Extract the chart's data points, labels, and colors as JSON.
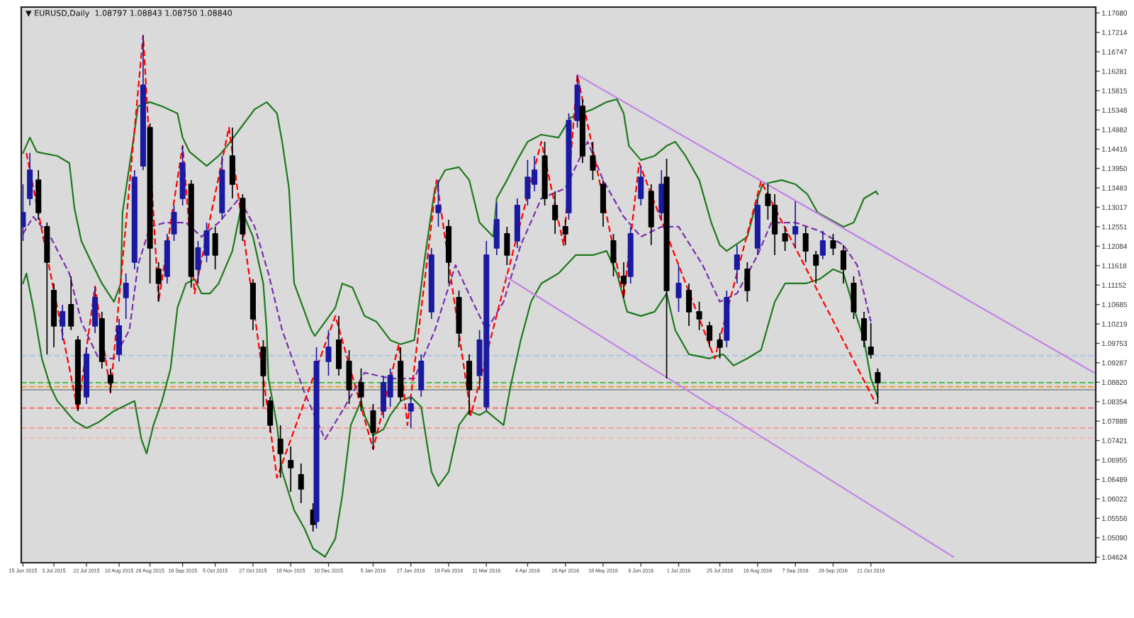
{
  "chart_data": {
    "type": "candlestick",
    "title": "▼ EURUSD,Daily  1.08797 1.08843 1.08750 1.08840",
    "x": [
      "2015-06-15",
      "2015-06-19",
      "2015-06-24",
      "2015-06-29",
      "2015-07-03",
      "2015-07-08",
      "2015-07-13",
      "2015-07-17",
      "2015-07-22",
      "2015-07-27",
      "2015-07-31",
      "2015-08-05",
      "2015-08-10",
      "2015-08-14",
      "2015-08-19",
      "2015-08-24",
      "2015-08-28",
      "2015-09-02",
      "2015-09-07",
      "2015-09-11",
      "2015-09-16",
      "2015-09-21",
      "2015-09-25",
      "2015-09-30",
      "2015-10-05",
      "2015-10-09",
      "2015-10-15",
      "2015-10-21",
      "2015-10-27",
      "2015-11-02",
      "2015-11-06",
      "2015-11-12",
      "2015-11-18",
      "2015-11-24",
      "2015-12-01",
      "2015-12-03",
      "2015-12-10",
      "2015-12-16",
      "2015-12-22",
      "2015-12-29",
      "2016-01-05",
      "2016-01-11",
      "2016-01-15",
      "2016-01-21",
      "2016-01-27",
      "2016-02-02",
      "2016-02-08",
      "2016-02-12",
      "2016-02-18",
      "2016-02-24",
      "2016-03-01",
      "2016-03-07",
      "2016-03-11",
      "2016-03-17",
      "2016-03-23",
      "2016-03-29",
      "2016-04-04",
      "2016-04-08",
      "2016-04-14",
      "2016-04-20",
      "2016-04-26",
      "2016-04-28",
      "2016-05-03",
      "2016-05-06",
      "2016-05-12",
      "2016-05-18",
      "2016-05-24",
      "2016-05-30",
      "2016-06-03",
      "2016-06-09",
      "2016-06-15",
      "2016-06-21",
      "2016-06-24",
      "2016-07-01",
      "2016-07-07",
      "2016-07-13",
      "2016-07-19",
      "2016-07-25",
      "2016-07-29",
      "2016-08-04",
      "2016-08-10",
      "2016-08-16",
      "2016-08-22",
      "2016-08-26",
      "2016-09-01",
      "2016-09-07",
      "2016-09-13",
      "2016-09-19",
      "2016-09-23",
      "2016-09-29",
      "2016-10-05",
      "2016-10-11",
      "2016-10-17",
      "2016-10-21",
      "2016-10-25"
    ],
    "ohlc": [
      [
        1.1255,
        1.1357,
        1.1221,
        1.1289
      ],
      [
        1.1323,
        1.1432,
        1.1306,
        1.1391
      ],
      [
        1.1367,
        1.1391,
        1.1272,
        1.1289
      ],
      [
        1.1255,
        1.1265,
        1.0949,
        1.117
      ],
      [
        1.1102,
        1.1119,
        1.0966,
        1.1017
      ],
      [
        1.1017,
        1.1068,
        1.0983,
        1.1051
      ],
      [
        1.1068,
        1.1136,
        1.1007,
        1.1017
      ],
      [
        1.0983,
        1.0993,
        1.0813,
        1.083
      ],
      [
        1.0847,
        1.0966,
        1.083,
        1.0949
      ],
      [
        1.1017,
        1.1112,
        1.1,
        1.1085
      ],
      [
        1.1034,
        1.1051,
        1.0915,
        1.0932
      ],
      [
        1.0898,
        1.0915,
        1.0857,
        1.0881
      ],
      [
        1.0949,
        1.1034,
        1.0932,
        1.1017
      ],
      [
        1.1085,
        1.1143,
        1.1034,
        1.1119
      ],
      [
        1.117,
        1.1391,
        1.1153,
        1.1374
      ],
      [
        1.1401,
        1.1714,
        1.1391,
        1.1595
      ],
      [
        1.1493,
        1.1503,
        1.1119,
        1.1204
      ],
      [
        1.1153,
        1.117,
        1.1075,
        1.1119
      ],
      [
        1.1136,
        1.1238,
        1.1119,
        1.1221
      ],
      [
        1.1238,
        1.1306,
        1.1221,
        1.1289
      ],
      [
        1.1323,
        1.1449,
        1.1306,
        1.1408
      ],
      [
        1.1357,
        1.1367,
        1.1109,
        1.1136
      ],
      [
        1.1153,
        1.1221,
        1.1119,
        1.1204
      ],
      [
        1.1187,
        1.1265,
        1.117,
        1.1245
      ],
      [
        1.1238,
        1.1255,
        1.1153,
        1.1187
      ],
      [
        1.1289,
        1.1425,
        1.1272,
        1.1391
      ],
      [
        1.1425,
        1.1493,
        1.1323,
        1.1357
      ],
      [
        1.1323,
        1.1333,
        1.1221,
        1.1238
      ],
      [
        1.1119,
        1.1129,
        1.1007,
        1.1034
      ],
      [
        1.0966,
        1.0983,
        1.0823,
        1.0898
      ],
      [
        1.0837,
        1.0847,
        1.0762,
        1.0779
      ],
      [
        1.0745,
        1.0779,
        1.0653,
        1.0711
      ],
      [
        1.0694,
        1.0728,
        1.0619,
        1.0677
      ],
      [
        1.066,
        1.0687,
        1.0592,
        1.0626
      ],
      [
        1.0575,
        1.0592,
        1.0524,
        1.0541
      ],
      [
        1.0548,
        1.0966,
        1.0531,
        1.0932
      ],
      [
        1.0932,
        1.1007,
        1.0898,
        1.0966
      ],
      [
        1.0983,
        1.1041,
        1.0898,
        1.0915
      ],
      [
        1.0932,
        1.0959,
        1.083,
        1.0864
      ],
      [
        1.0881,
        1.0915,
        1.0813,
        1.0847
      ],
      [
        1.0813,
        1.083,
        1.0721,
        1.0762
      ],
      [
        1.0813,
        1.0898,
        1.0796,
        1.0881
      ],
      [
        1.0847,
        1.0915,
        1.0823,
        1.0898
      ],
      [
        1.0932,
        1.0966,
        1.0837,
        1.0847
      ],
      [
        1.0813,
        1.0847,
        1.0772,
        1.083
      ],
      [
        1.0864,
        1.0949,
        1.0847,
        1.0932
      ],
      [
        1.1051,
        1.1204,
        1.1034,
        1.1187
      ],
      [
        1.1289,
        1.1367,
        1.1255,
        1.1306
      ],
      [
        1.1255,
        1.1272,
        1.1119,
        1.117
      ],
      [
        1.1085,
        1.1102,
        1.0966,
        1.1
      ],
      [
        1.0932,
        1.0949,
        1.0803,
        1.0864
      ],
      [
        1.0898,
        1.1007,
        1.0864,
        1.0983
      ],
      [
        1.0823,
        1.1221,
        1.0813,
        1.1187
      ],
      [
        1.1204,
        1.1313,
        1.1187,
        1.1272
      ],
      [
        1.1238,
        1.1255,
        1.1163,
        1.1187
      ],
      [
        1.1221,
        1.1323,
        1.1204,
        1.1306
      ],
      [
        1.1323,
        1.1415,
        1.1306,
        1.1374
      ],
      [
        1.1357,
        1.1425,
        1.134,
        1.1391
      ],
      [
        1.1425,
        1.1459,
        1.1306,
        1.1323
      ],
      [
        1.1306,
        1.134,
        1.1238,
        1.1272
      ],
      [
        1.1255,
        1.1272,
        1.1211,
        1.1238
      ],
      [
        1.1289,
        1.1527,
        1.1272,
        1.151
      ],
      [
        1.151,
        1.1619,
        1.1493,
        1.1595
      ],
      [
        1.1544,
        1.1561,
        1.1408,
        1.1425
      ],
      [
        1.1425,
        1.1459,
        1.1367,
        1.1391
      ],
      [
        1.1357,
        1.1367,
        1.1255,
        1.1289
      ],
      [
        1.1221,
        1.1238,
        1.1136,
        1.117
      ],
      [
        1.1136,
        1.117,
        1.1085,
        1.1119
      ],
      [
        1.1136,
        1.1255,
        1.1119,
        1.1238
      ],
      [
        1.1323,
        1.1401,
        1.1306,
        1.1374
      ],
      [
        1.134,
        1.1357,
        1.1211,
        1.1255
      ],
      [
        1.1289,
        1.1391,
        1.1272,
        1.1357
      ],
      [
        1.1374,
        1.1418,
        1.0891,
        1.1102
      ],
      [
        1.1085,
        1.1163,
        1.1051,
        1.1119
      ],
      [
        1.1102,
        1.1119,
        1.1017,
        1.1051
      ],
      [
        1.1051,
        1.1075,
        1.1007,
        1.1034
      ],
      [
        1.1017,
        1.1027,
        1.0966,
        1.0983
      ],
      [
        1.0983,
        1.1,
        1.0939,
        1.0966
      ],
      [
        1.0983,
        1.1102,
        1.0966,
        1.1085
      ],
      [
        1.1153,
        1.1211,
        1.1119,
        1.1187
      ],
      [
        1.1153,
        1.117,
        1.1075,
        1.1102
      ],
      [
        1.1204,
        1.1323,
        1.1187,
        1.1306
      ],
      [
        1.1333,
        1.1357,
        1.1272,
        1.1306
      ],
      [
        1.1306,
        1.1333,
        1.1187,
        1.1238
      ],
      [
        1.1238,
        1.1255,
        1.1197,
        1.1221
      ],
      [
        1.1238,
        1.1316,
        1.1204,
        1.1255
      ],
      [
        1.1238,
        1.1255,
        1.117,
        1.1197
      ],
      [
        1.1187,
        1.1197,
        1.1119,
        1.1163
      ],
      [
        1.1187,
        1.1245,
        1.1177,
        1.1221
      ],
      [
        1.1221,
        1.1238,
        1.1187,
        1.1204
      ],
      [
        1.1197,
        1.1211,
        1.1119,
        1.1153
      ],
      [
        1.1119,
        1.1136,
        1.1034,
        1.1051
      ],
      [
        1.1034,
        1.1051,
        1.0966,
        1.0983
      ],
      [
        1.0966,
        1.1024,
        1.0939,
        1.0949
      ],
      [
        1.0905,
        1.0915,
        1.083,
        1.0881
      ]
    ],
    "colors": [
      "#1a1aa0",
      "#1a1aa0",
      "#000000",
      "#000000",
      "#000000",
      "#1a1aa0",
      "#000000",
      "#000000",
      "#1a1aa0",
      "#1a1aa0",
      "#000000",
      "#000000",
      "#1a1aa0",
      "#1a1aa0",
      "#1a1aa0",
      "#1a1aa0",
      "#000000",
      "#000000",
      "#1a1aa0",
      "#1a1aa0",
      "#1a1aa0",
      "#000000",
      "#1a1aa0",
      "#1a1aa0",
      "#000000",
      "#1a1aa0",
      "#000000",
      "#000000",
      "#000000",
      "#000000",
      "#000000",
      "#000000",
      "#000000",
      "#000000",
      "#000000",
      "#1a1aa0",
      "#1a1aa0",
      "#000000",
      "#000000",
      "#000000",
      "#000000",
      "#1a1aa0",
      "#1a1aa0",
      "#000000",
      "#1a1aa0",
      "#1a1aa0",
      "#1a1aa0",
      "#1a1aa0",
      "#000000",
      "#000000",
      "#000000",
      "#1a1aa0",
      "#1a1aa0",
      "#1a1aa0",
      "#000000",
      "#1a1aa0",
      "#1a1aa0",
      "#1a1aa0",
      "#000000",
      "#000000",
      "#000000",
      "#1a1aa0",
      "#1a1aa0",
      "#000000",
      "#000000",
      "#000000",
      "#000000",
      "#000000",
      "#1a1aa0",
      "#1a1aa0",
      "#000000",
      "#1a1aa0",
      "#000000",
      "#1a1aa0",
      "#000000",
      "#000000",
      "#000000",
      "#000000",
      "#1a1aa0",
      "#1a1aa0",
      "#000000",
      "#1a1aa0",
      "#000000",
      "#000000",
      "#000000",
      "#1a1aa0",
      "#000000",
      "#000000",
      "#1a1aa0",
      "#000000",
      "#000000",
      "#000000",
      "#000000",
      "#000000",
      "#000000"
    ],
    "series": [
      {
        "type": "line",
        "color": "#1e7a1e",
        "line_style": "solid",
        "x": [
          "2015-06-15",
          "2015-06-19",
          "2015-06-23",
          "2015-06-26",
          "2015-07-05",
          "2015-07-12",
          "2015-07-15",
          "2015-07-19",
          "2015-07-24",
          "2015-07-31",
          "2015-08-07",
          "2015-08-11",
          "2015-08-12",
          "2015-08-19",
          "2015-08-21",
          "2015-08-28",
          "2015-09-04",
          "2015-09-13",
          "2015-09-16",
          "2015-09-20",
          "2015-09-30",
          "2015-10-07",
          "2015-10-12",
          "2015-10-20",
          "2015-10-28",
          "2015-11-04",
          "2015-11-10",
          "2015-11-13",
          "2015-11-17",
          "2015-11-20",
          "2015-11-30",
          "2015-12-02",
          "2015-12-14",
          "2015-12-18",
          "2015-12-24",
          "2015-12-31",
          "2016-01-07",
          "2016-01-15",
          "2016-01-21",
          "2016-01-29",
          "2016-02-04",
          "2016-02-10",
          "2016-02-16",
          "2016-02-24",
          "2016-03-01",
          "2016-03-07",
          "2016-03-15",
          "2016-03-17",
          "2016-03-23",
          "2016-03-29",
          "2016-04-04",
          "2016-04-12",
          "2016-04-22",
          "2016-04-29",
          "2016-05-12",
          "2016-05-20",
          "2016-05-26",
          "2016-05-30",
          "2016-06-02",
          "2016-06-09",
          "2016-06-17",
          "2016-06-24",
          "2016-06-29",
          "2016-07-05",
          "2016-07-13",
          "2016-07-20",
          "2016-07-25",
          "2016-07-29",
          "2016-08-10",
          "2016-08-16",
          "2016-08-19",
          "2016-08-30",
          "2016-09-07",
          "2016-09-14",
          "2016-09-20",
          "2016-10-05",
          "2016-10-11",
          "2016-10-17",
          "2016-10-24",
          "2016-10-25"
        ],
        "values": [
          1.1432,
          1.1469,
          1.1435,
          1.1432,
          1.1425,
          1.1408,
          1.1299,
          1.1221,
          1.1177,
          1.1119,
          1.1075,
          1.1119,
          1.1289,
          1.1483,
          1.1544,
          1.1554,
          1.1544,
          1.1527,
          1.1469,
          1.1435,
          1.1401,
          1.1425,
          1.1449,
          1.1493,
          1.1537,
          1.1554,
          1.1527,
          1.1459,
          1.1347,
          1.1119,
          1.1007,
          1.0993,
          1.1061,
          1.1119,
          1.1109,
          1.1041,
          1.1027,
          1.0983,
          1.0973,
          1.0983,
          1.1177,
          1.1347,
          1.1391,
          1.1398,
          1.1367,
          1.1265,
          1.1231,
          1.1323,
          1.1367,
          1.1415,
          1.1459,
          1.1476,
          1.1469,
          1.1517,
          1.1537,
          1.1554,
          1.1561,
          1.1527,
          1.1449,
          1.1415,
          1.1425,
          1.1449,
          1.1459,
          1.1425,
          1.1367,
          1.1265,
          1.1211,
          1.1197,
          1.1231,
          1.1323,
          1.1357,
          1.1367,
          1.1357,
          1.1333,
          1.1289,
          1.1255,
          1.1265,
          1.1323,
          1.134,
          1.1333
        ]
      },
      {
        "type": "line",
        "color": "#1e7a1e",
        "line_style": "solid",
        "x": [
          "2015-06-15",
          "2015-06-17",
          "2015-06-21",
          "2015-06-26",
          "2015-07-01",
          "2015-07-05",
          "2015-07-15",
          "2015-07-22",
          "2015-07-29",
          "2015-08-07",
          "2015-08-12",
          "2015-08-19",
          "2015-08-23",
          "2015-08-26",
          "2015-08-30",
          "2015-09-04",
          "2015-09-09",
          "2015-09-13",
          "2015-09-18",
          "2015-09-23",
          "2015-09-27",
          "2015-10-02",
          "2015-10-07",
          "2015-10-15",
          "2015-10-20",
          "2015-10-27",
          "2015-11-02",
          "2015-11-04",
          "2015-11-05",
          "2015-11-10",
          "2015-11-13",
          "2015-11-20",
          "2015-11-26",
          "2015-12-01",
          "2015-12-08",
          "2015-12-14",
          "2015-12-18",
          "2015-12-23",
          "2015-12-29",
          "2015-12-31",
          "2016-01-05",
          "2016-01-11",
          "2016-01-15",
          "2016-01-21",
          "2016-01-27",
          "2016-02-02",
          "2016-02-08",
          "2016-02-12",
          "2016-02-18",
          "2016-02-24",
          "2016-03-01",
          "2016-03-07",
          "2016-03-11",
          "2016-03-21",
          "2016-03-25",
          "2016-03-31",
          "2016-04-06",
          "2016-04-12",
          "2016-04-22",
          "2016-05-02",
          "2016-05-12",
          "2016-05-20",
          "2016-05-26",
          "2016-06-01",
          "2016-06-09",
          "2016-06-17",
          "2016-06-24",
          "2016-06-29",
          "2016-07-07",
          "2016-07-19",
          "2016-07-27",
          "2016-08-02",
          "2016-08-10",
          "2016-08-18",
          "2016-08-26",
          "2016-09-01",
          "2016-09-13",
          "2016-09-21",
          "2016-09-29",
          "2016-10-05",
          "2016-10-11",
          "2016-10-17",
          "2016-10-21",
          "2016-10-25"
        ],
        "values": [
          1.1119,
          1.1143,
          1.1061,
          1.0939,
          1.0871,
          1.0837,
          1.0789,
          1.0772,
          1.0786,
          1.0813,
          1.0823,
          1.0837,
          1.0745,
          1.0711,
          1.0779,
          1.0837,
          1.0915,
          1.1061,
          1.1119,
          1.1129,
          1.1095,
          1.1095,
          1.1119,
          1.1197,
          1.1299,
          1.1231,
          1.1119,
          1.1007,
          1.0891,
          1.0779,
          1.0667,
          1.0575,
          1.0531,
          1.0483,
          1.0463,
          1.0507,
          1.0609,
          1.0779,
          1.0837,
          1.0803,
          1.0755,
          1.0769,
          1.0803,
          1.0837,
          1.0847,
          1.0823,
          1.0667,
          1.0633,
          1.0667,
          1.0779,
          1.0813,
          1.0803,
          1.0813,
          1.0779,
          1.0871,
          1.0983,
          1.1075,
          1.1119,
          1.1143,
          1.1187,
          1.1187,
          1.1197,
          1.1143,
          1.1051,
          1.1041,
          1.1051,
          1.1095,
          1.1007,
          1.0949,
          1.0939,
          1.0949,
          1.0922,
          1.0939,
          1.0959,
          1.1075,
          1.1119,
          1.1119,
          1.1129,
          1.1153,
          1.1143,
          1.1061,
          1.0983,
          1.0891,
          1.0847
        ]
      },
      {
        "type": "line",
        "color": "#7a2fb0",
        "line_style": "dashed",
        "x": [
          "2015-06-15",
          "2015-06-21",
          "2015-07-01",
          "2015-07-12",
          "2015-07-19",
          "2015-07-29",
          "2015-08-07",
          "2015-08-16",
          "2015-08-21",
          "2015-08-28",
          "2015-09-06",
          "2015-09-18",
          "2015-09-27",
          "2015-10-07",
          "2015-10-19",
          "2015-10-28",
          "2015-11-05",
          "2015-11-13",
          "2015-11-26",
          "2015-12-08",
          "2015-12-18",
          "2015-12-31",
          "2016-01-15",
          "2016-01-29",
          "2016-02-10",
          "2016-02-22",
          "2016-03-03",
          "2016-03-11",
          "2016-03-21",
          "2016-03-31",
          "2016-04-12",
          "2016-04-26",
          "2016-05-09",
          "2016-05-18",
          "2016-05-30",
          "2016-06-09",
          "2016-06-21",
          "2016-07-01",
          "2016-07-15",
          "2016-07-25",
          "2016-08-04",
          "2016-08-16",
          "2016-08-24",
          "2016-09-07",
          "2016-09-21",
          "2016-10-05",
          "2016-10-13",
          "2016-10-21"
        ],
        "values": [
          1.1238,
          1.1279,
          1.1231,
          1.1143,
          1.1027,
          1.0939,
          1.0939,
          1.1007,
          1.1163,
          1.1255,
          1.1265,
          1.1265,
          1.1231,
          1.1265,
          1.1323,
          1.1255,
          1.1143,
          1.1007,
          1.0857,
          1.0745,
          1.0813,
          1.0905,
          1.0891,
          1.0891,
          1.1007,
          1.1163,
          1.1075,
          1.1007,
          1.1075,
          1.1211,
          1.1323,
          1.1347,
          1.1459,
          1.1367,
          1.1279,
          1.1231,
          1.1255,
          1.1255,
          1.1163,
          1.1075,
          1.1095,
          1.1187,
          1.1265,
          1.1265,
          1.1245,
          1.1211,
          1.1163,
          1.1027
        ]
      },
      {
        "type": "line",
        "color": "#ff0000",
        "line_style": "dashed",
        "x": [
          "2015-06-17",
          "2015-07-17",
          "2015-07-27",
          "2015-08-05",
          "2015-08-24",
          "2015-09-02",
          "2015-09-16",
          "2015-09-23",
          "2015-10-13",
          "2015-11-10",
          "2015-12-14",
          "2016-01-05",
          "2016-01-20",
          "2016-01-25",
          "2016-02-11",
          "2016-03-02",
          "2016-04-12",
          "2016-04-25",
          "2016-05-03",
          "2016-05-30",
          "2016-06-08",
          "2016-07-22",
          "2016-08-18",
          "2016-10-24"
        ],
        "values": [
          1.1432,
          1.0813,
          1.1112,
          1.0857,
          1.1714,
          1.1075,
          1.1449,
          1.1095,
          1.1493,
          1.0653,
          1.1041,
          1.0721,
          1.0973,
          1.0779,
          1.1367,
          1.0803,
          1.1459,
          1.1211,
          1.1619,
          1.1085,
          1.1408,
          1.0939,
          1.1364,
          1.083
        ]
      },
      {
        "type": "line",
        "color": "#c383e6",
        "line_style": "solid",
        "x": [
          "2016-05-03",
          "2017-02-28"
        ],
        "values": [
          1.1619,
          1.0905
        ]
      },
      {
        "type": "line",
        "color": "#c383e6",
        "line_style": "solid",
        "x": [
          "2016-03-22",
          "2016-12-08"
        ],
        "values": [
          1.1136,
          1.0463
        ]
      }
    ],
    "ref_lines": [
      {
        "axis": "y",
        "value": 1.0946,
        "color": "#a9c3e0",
        "line_style": "dashed"
      },
      {
        "axis": "y",
        "value": 1.0881,
        "color": "#4cc24c",
        "line_style": "dashed"
      },
      {
        "axis": "y",
        "value": 1.0871,
        "color": "#f0a030",
        "line_style": "dashed"
      },
      {
        "axis": "y",
        "value": 1.0864,
        "color": "#9a9a9a",
        "line_style": "solid"
      },
      {
        "axis": "y",
        "value": 1.082,
        "color": "#f07070",
        "line_style": "dashed"
      },
      {
        "axis": "y",
        "value": 1.0772,
        "color": "#f4a0a0",
        "line_style": "dashed"
      },
      {
        "axis": "y",
        "value": 1.0748,
        "color": "#f0b4b4",
        "line_style": "dashed"
      }
    ],
    "xlim": [
      "2015-06-14",
      "2017-03-01"
    ],
    "xticks": [
      {
        "value": "2015-06-15",
        "label": "15 Jun 2015"
      },
      {
        "value": "2015-07-03",
        "label": "3 Jul 2015"
      },
      {
        "value": "2015-07-22",
        "label": "22 Jul 2015"
      },
      {
        "value": "2015-08-10",
        "label": "10 Aug 2015"
      },
      {
        "value": "2015-08-28",
        "label": "28 Aug 2015"
      },
      {
        "value": "2015-09-16",
        "label": "16 Sep 2015"
      },
      {
        "value": "2015-10-05",
        "label": "5 Oct 2015"
      },
      {
        "value": "2015-10-27",
        "label": "27 Oct 2015"
      },
      {
        "value": "2015-11-18",
        "label": "18 Nov 2015"
      },
      {
        "value": "2015-12-10",
        "label": "10 Dec 2015"
      },
      {
        "value": "2016-01-05",
        "label": "5 Jan 2016"
      },
      {
        "value": "2016-01-27",
        "label": "27 Jan 2016"
      },
      {
        "value": "2016-02-18",
        "label": "18 Feb 2016"
      },
      {
        "value": "2016-03-11",
        "label": "11 Mar 2016"
      },
      {
        "value": "2016-04-04",
        "label": "4 Apr 2016"
      },
      {
        "value": "2016-04-26",
        "label": "26 Apr 2016"
      },
      {
        "value": "2016-05-18",
        "label": "18 May 2016"
      },
      {
        "value": "2016-06-09",
        "label": "9 Jun 2016"
      },
      {
        "value": "2016-07-01",
        "label": "1 Jul 2016"
      },
      {
        "value": "2016-07-25",
        "label": "25 Jul 2016"
      },
      {
        "value": "2016-08-16",
        "label": "16 Aug 2016"
      },
      {
        "value": "2016-09-07",
        "label": "7 Sep 2016"
      },
      {
        "value": "2016-09-29",
        "label": "29 Sep 2016"
      },
      {
        "value": "2016-10-21",
        "label": "21 Oct 2016"
      }
    ],
    "ylim": [
      1.0449,
      1.1782
    ],
    "yticks": [
      {
        "value": 1.1768,
        "label": "1.17680"
      },
      {
        "value": 1.17214,
        "label": "1.17214"
      },
      {
        "value": 1.16747,
        "label": "1.16747"
      },
      {
        "value": 1.16281,
        "label": "1.16281"
      },
      {
        "value": 1.15815,
        "label": "1.15815"
      },
      {
        "value": 1.15348,
        "label": "1.15348"
      },
      {
        "value": 1.14882,
        "label": "1.14882"
      },
      {
        "value": 1.14416,
        "label": "1.14416"
      },
      {
        "value": 1.1395,
        "label": "1.13950"
      },
      {
        "value": 1.13483,
        "label": "1.13483"
      },
      {
        "value": 1.13017,
        "label": "1.13017"
      },
      {
        "value": 1.12551,
        "label": "1.12551"
      },
      {
        "value": 1.12084,
        "label": "1.12084"
      },
      {
        "value": 1.11618,
        "label": "1.11618"
      },
      {
        "value": 1.11152,
        "label": "1.11152"
      },
      {
        "value": 1.10685,
        "label": "1.10685"
      },
      {
        "value": 1.10219,
        "label": "1.10219"
      },
      {
        "value": 1.09753,
        "label": "1.09753"
      },
      {
        "value": 1.09287,
        "label": "1.09287"
      },
      {
        "value": 1.0882,
        "label": "1.08820"
      },
      {
        "value": 1.08354,
        "label": "1.08354"
      },
      {
        "value": 1.07888,
        "label": "1.07888"
      },
      {
        "value": 1.07421,
        "label": "1.07421"
      },
      {
        "value": 1.06955,
        "label": "1.06955"
      },
      {
        "value": 1.06489,
        "label": "1.06489"
      },
      {
        "value": 1.06022,
        "label": "1.06022"
      },
      {
        "value": 1.05556,
        "label": "1.05556"
      },
      {
        "value": 1.0509,
        "label": "1.05090"
      },
      {
        "value": 1.04624,
        "label": "1.04624"
      }
    ]
  }
}
